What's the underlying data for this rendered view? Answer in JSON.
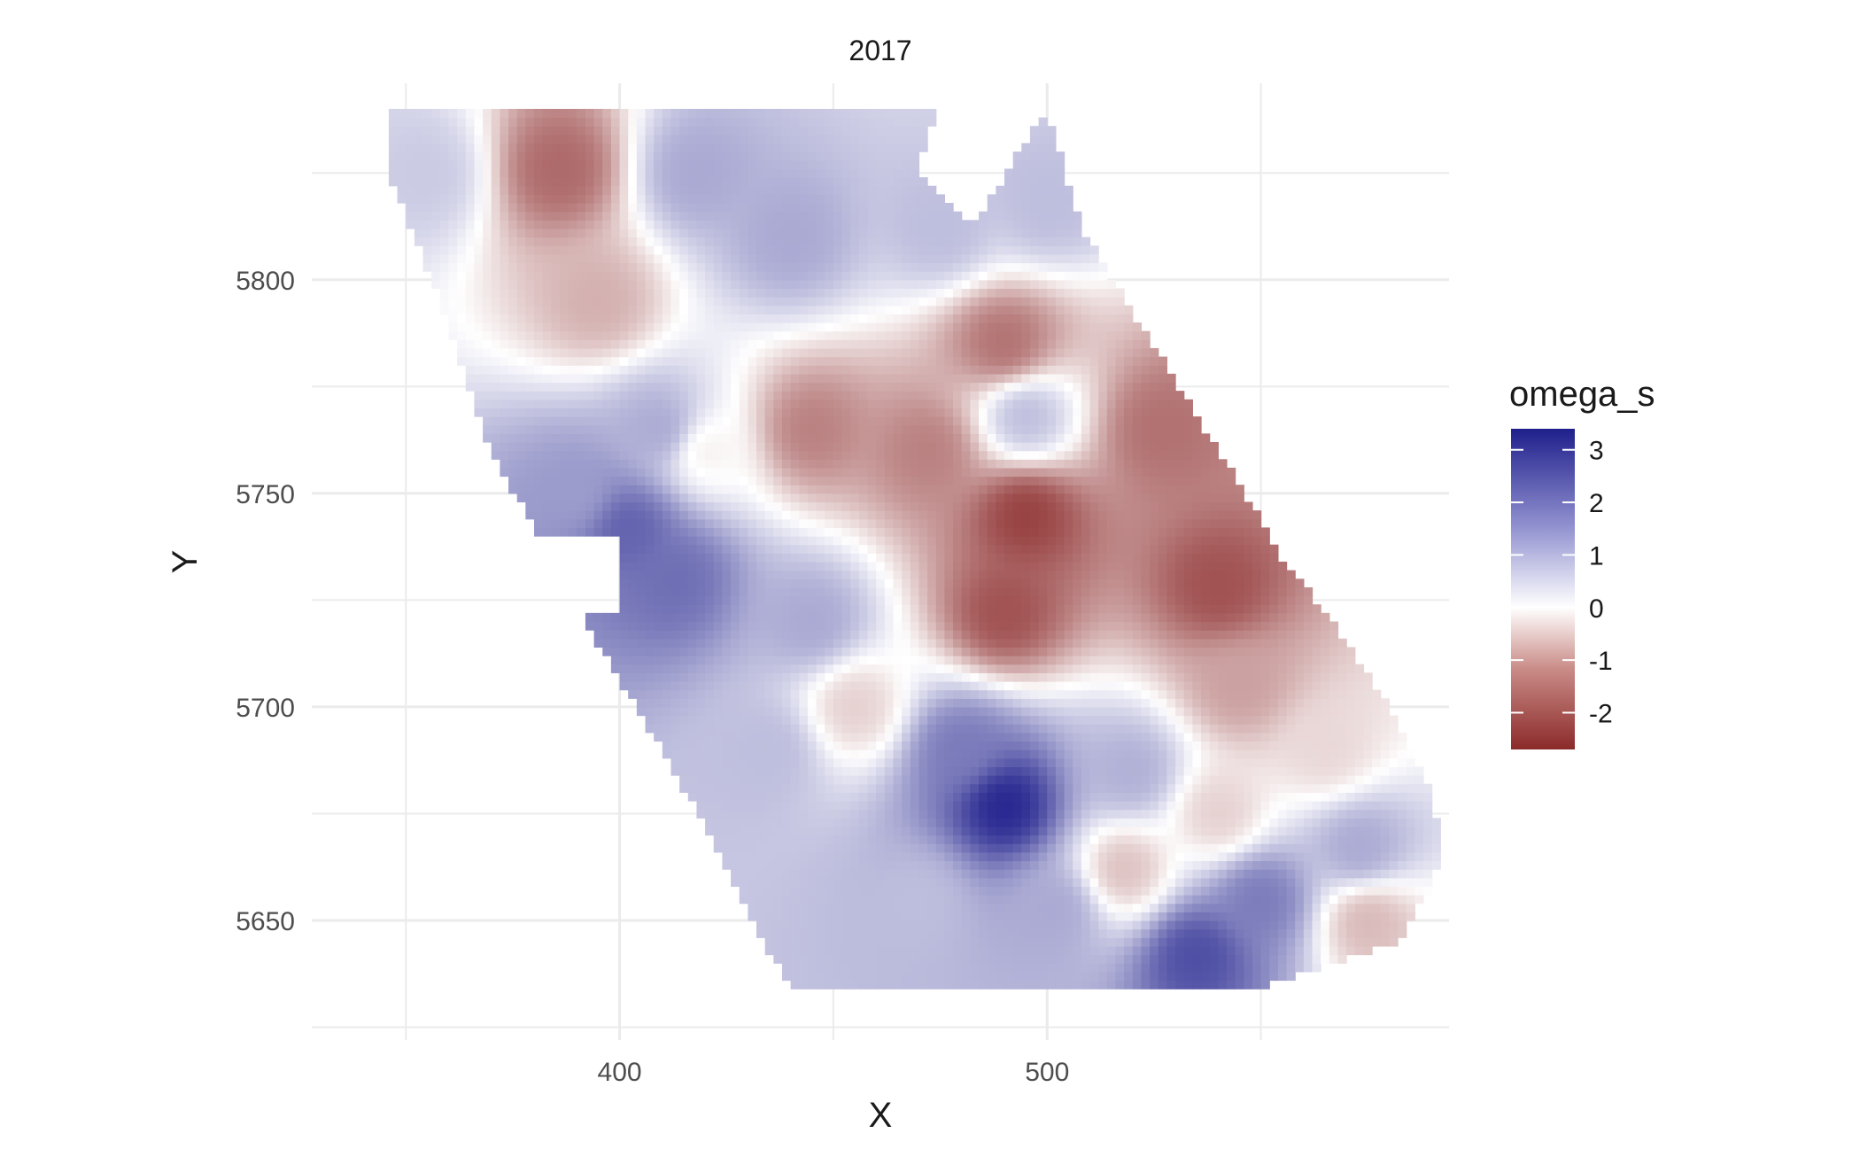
{
  "chart_data": {
    "type": "heatmap",
    "title": "2017",
    "xlabel": "X",
    "ylabel": "Y",
    "xlim": [
      328,
      594
    ],
    "ylim": [
      5622,
      5846
    ],
    "x_ticks": [
      400,
      500
    ],
    "x_tick_labels": [
      "400",
      "500"
    ],
    "x_minor_gridlines": [
      350,
      450,
      550
    ],
    "y_ticks": [
      5650,
      5700,
      5750,
      5800
    ],
    "y_tick_labels": [
      "5650",
      "5700",
      "5750",
      "5800"
    ],
    "y_minor_gridlines": [
      5625,
      5675,
      5725,
      5775,
      5825
    ],
    "grid": true,
    "legend": {
      "title": "omega_s",
      "placement": "right",
      "range": [
        -2.7,
        3.4
      ],
      "ticks": [
        3,
        2,
        1,
        0,
        -1,
        -2
      ],
      "tick_labels": [
        "3",
        "2",
        "1",
        "0",
        "-1",
        "-2"
      ]
    },
    "colors": {
      "low": "#8b2a2a",
      "mid": "#ffffff",
      "high": "#1f1f8c",
      "grid": "#ebebeb"
    },
    "field_hotspots": [
      {
        "x": 386,
        "y": 5826,
        "value": -1.9
      },
      {
        "x": 395,
        "y": 5795,
        "value": -1.0
      },
      {
        "x": 355,
        "y": 5825,
        "value": 0.8
      },
      {
        "x": 418,
        "y": 5825,
        "value": 1.3
      },
      {
        "x": 440,
        "y": 5810,
        "value": 1.3
      },
      {
        "x": 475,
        "y": 5812,
        "value": 1.0
      },
      {
        "x": 500,
        "y": 5818,
        "value": 1.0
      },
      {
        "x": 410,
        "y": 5765,
        "value": 1.3
      },
      {
        "x": 390,
        "y": 5750,
        "value": 1.5
      },
      {
        "x": 402,
        "y": 5742,
        "value": 2.4
      },
      {
        "x": 413,
        "y": 5730,
        "value": 2.2
      },
      {
        "x": 420,
        "y": 5760,
        "value": -0.2
      },
      {
        "x": 445,
        "y": 5765,
        "value": -1.6
      },
      {
        "x": 472,
        "y": 5760,
        "value": -1.6
      },
      {
        "x": 490,
        "y": 5785,
        "value": -1.8
      },
      {
        "x": 527,
        "y": 5765,
        "value": -1.8
      },
      {
        "x": 495,
        "y": 5768,
        "value": 1.0
      },
      {
        "x": 495,
        "y": 5745,
        "value": -2.4
      },
      {
        "x": 490,
        "y": 5722,
        "value": -2.2
      },
      {
        "x": 540,
        "y": 5728,
        "value": -2.2
      },
      {
        "x": 545,
        "y": 5705,
        "value": -1.2
      },
      {
        "x": 445,
        "y": 5720,
        "value": 1.3
      },
      {
        "x": 455,
        "y": 5700,
        "value": -0.6
      },
      {
        "x": 435,
        "y": 5690,
        "value": 1.0
      },
      {
        "x": 490,
        "y": 5677,
        "value": 3.3
      },
      {
        "x": 480,
        "y": 5690,
        "value": 2.0
      },
      {
        "x": 470,
        "y": 5655,
        "value": 1.0
      },
      {
        "x": 502,
        "y": 5653,
        "value": 1.3
      },
      {
        "x": 535,
        "y": 5642,
        "value": 2.7
      },
      {
        "x": 550,
        "y": 5655,
        "value": 2.0
      },
      {
        "x": 520,
        "y": 5685,
        "value": 1.2
      },
      {
        "x": 540,
        "y": 5675,
        "value": -0.6
      },
      {
        "x": 573,
        "y": 5667,
        "value": 1.3
      },
      {
        "x": 565,
        "y": 5690,
        "value": -0.5
      },
      {
        "x": 575,
        "y": 5650,
        "value": -0.9
      },
      {
        "x": 518,
        "y": 5662,
        "value": -0.8
      }
    ]
  }
}
